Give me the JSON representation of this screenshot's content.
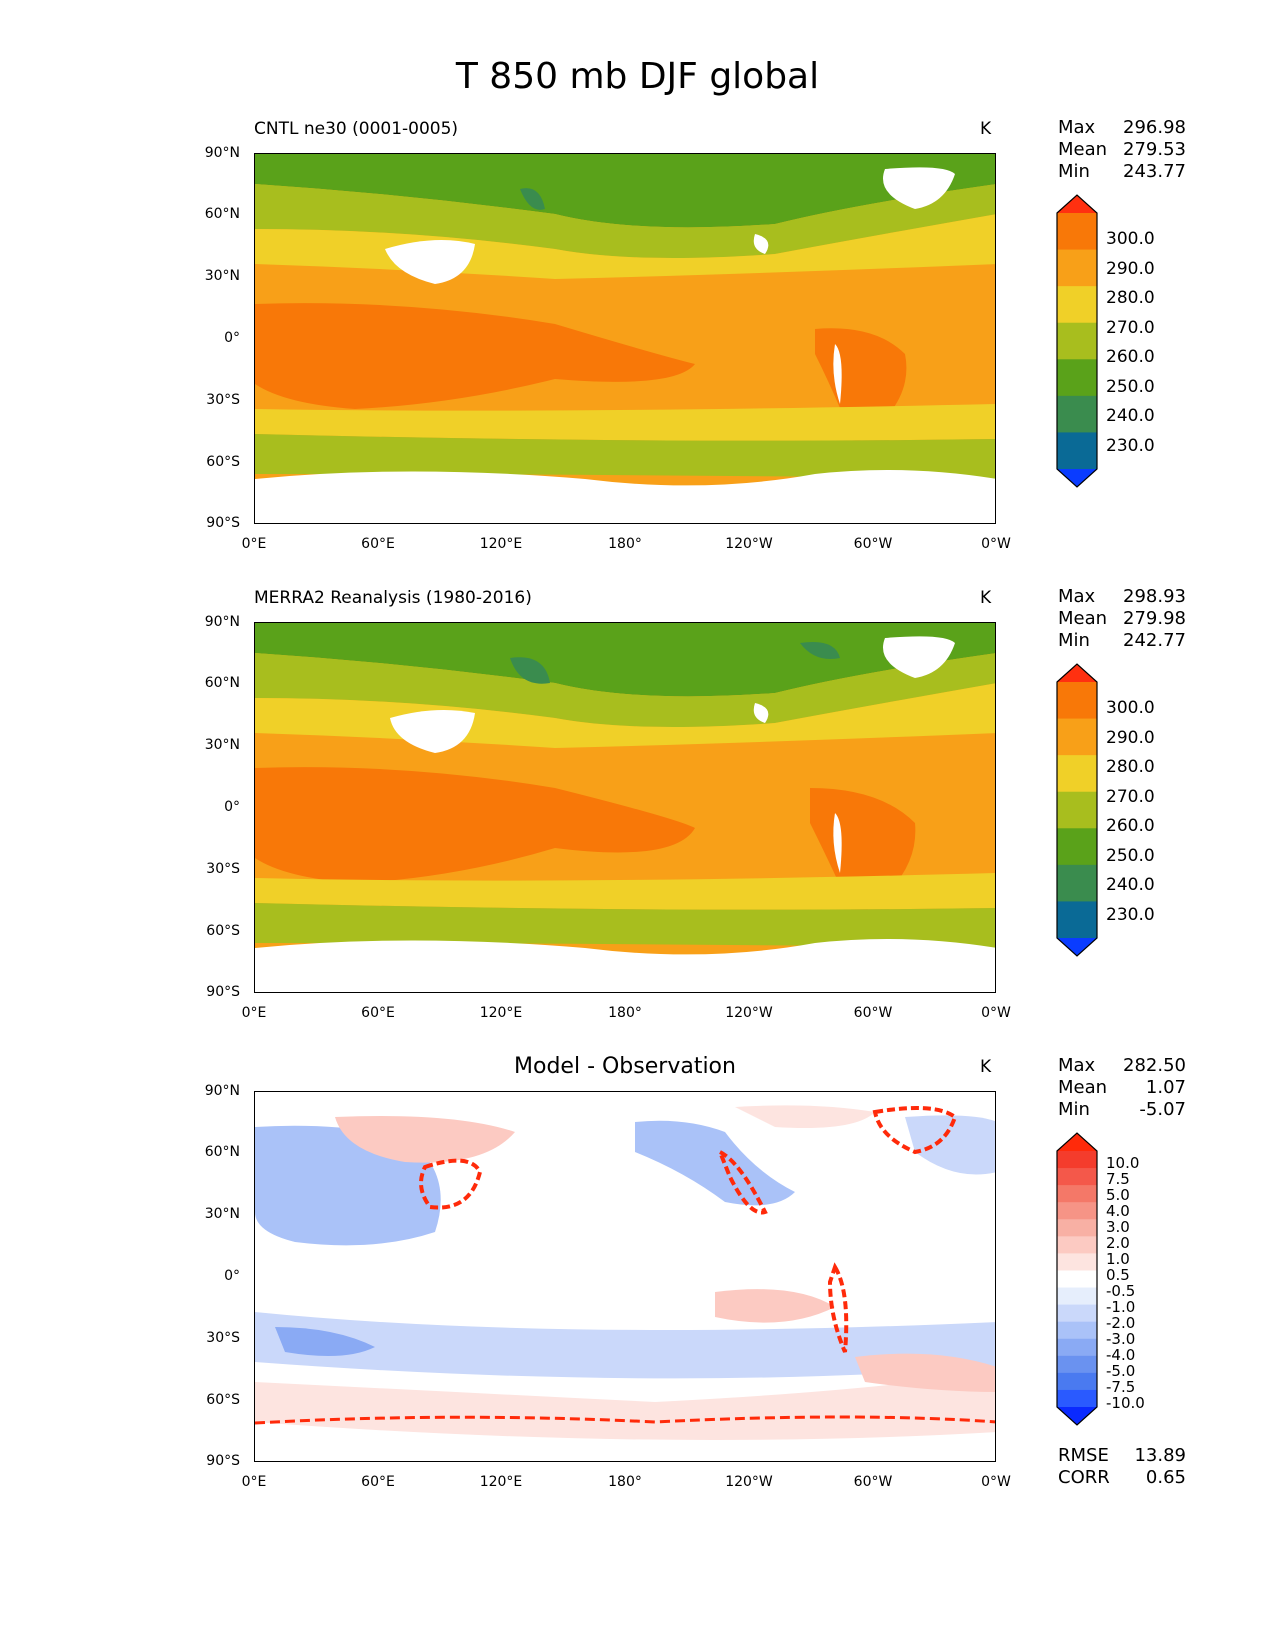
{
  "figure_title": "T 850 mb DJF global",
  "chart_data": [
    {
      "type": "heatmap",
      "panel": "test",
      "title": "CNTL ne30 (0001-0005)",
      "units": "K",
      "stats": {
        "max_label": "Max",
        "max": "296.98",
        "mean_label": "Mean",
        "mean": "279.53",
        "min_label": "Min",
        "min": "243.77"
      },
      "levels": [
        "230.0",
        "240.0",
        "250.0",
        "260.0",
        "270.0",
        "280.0",
        "290.0",
        "300.0"
      ],
      "colors": [
        "#0a3cff",
        "#0a6a96",
        "#3a8c4e",
        "#5aa21a",
        "#a8be1e",
        "#f0d028",
        "#f8a018",
        "#f87808",
        "#ff3010"
      ],
      "xticks": [
        "0°E",
        "60°E",
        "120°E",
        "180°",
        "120°W",
        "60°W",
        "0°W"
      ],
      "yticks": [
        "90°N",
        "60°N",
        "30°N",
        "0°",
        "30°S",
        "60°S",
        "90°S"
      ]
    },
    {
      "type": "heatmap",
      "panel": "reference",
      "title": "MERRA2 Reanalysis (1980-2016)",
      "units": "K",
      "stats": {
        "max_label": "Max",
        "max": "298.93",
        "mean_label": "Mean",
        "mean": "279.98",
        "min_label": "Min",
        "min": "242.77"
      },
      "levels": [
        "230.0",
        "240.0",
        "250.0",
        "260.0",
        "270.0",
        "280.0",
        "290.0",
        "300.0"
      ],
      "colors": [
        "#0a3cff",
        "#0a6a96",
        "#3a8c4e",
        "#5aa21a",
        "#a8be1e",
        "#f0d028",
        "#f8a018",
        "#f87808",
        "#ff3010"
      ],
      "xticks": [
        "0°E",
        "60°E",
        "120°E",
        "180°",
        "120°W",
        "60°W",
        "0°W"
      ],
      "yticks": [
        "90°N",
        "60°N",
        "30°N",
        "0°",
        "30°S",
        "60°S",
        "90°S"
      ]
    },
    {
      "type": "heatmap",
      "panel": "difference",
      "title": "Model - Observation",
      "units": "K",
      "stats": {
        "max_label": "Max",
        "max": "282.50",
        "mean_label": "Mean",
        "mean": "1.07",
        "min_label": "Min",
        "min": "-5.07"
      },
      "levels": [
        "-10.0",
        "-7.5",
        "-5.0",
        "-4.0",
        "-3.0",
        "-2.0",
        "-1.0",
        "-0.5",
        "0.5",
        "1.0",
        "2.0",
        "3.0",
        "4.0",
        "5.0",
        "7.5",
        "10.0"
      ],
      "colors": [
        "#0a2aff",
        "#2a5aff",
        "#4a7af0",
        "#6a92f0",
        "#8aaaf4",
        "#aac2f8",
        "#cad8fa",
        "#e6eefc",
        "#ffffff",
        "#fde4e0",
        "#fccac2",
        "#f8b0a4",
        "#f69486",
        "#f47868",
        "#f4584a",
        "#f43c2c",
        "#ff2a0a"
      ],
      "xticks": [
        "0°E",
        "60°E",
        "120°E",
        "180°",
        "120°W",
        "60°W",
        "0°W"
      ],
      "yticks": [
        "90°N",
        "60°N",
        "30°N",
        "0°",
        "30°S",
        "60°S",
        "90°S"
      ],
      "metrics": {
        "rmse_label": "RMSE",
        "rmse": "13.89",
        "corr_label": "CORR",
        "corr": "0.65"
      }
    }
  ]
}
